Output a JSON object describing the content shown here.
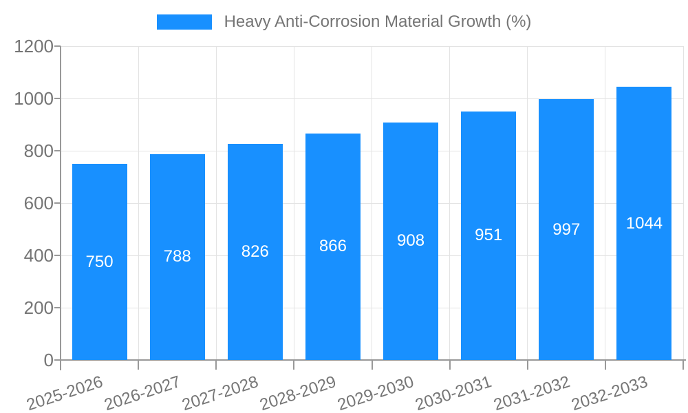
{
  "colors": {
    "bar": "#1890FF",
    "axis": "#999999",
    "grid": "#E3E3E3",
    "text": "#757575",
    "bar_label": "#FFFFFF",
    "background": "#FFFFFF"
  },
  "legend": {
    "label": "Heavy Anti-Corrosion Material Growth (%)"
  },
  "chart_data": {
    "type": "bar",
    "title": "Heavy Anti-Corrosion Material Growth (%)",
    "categories": [
      "2025-2026",
      "2026-2027",
      "2027-2028",
      "2028-2029",
      "2029-2030",
      "2030-2031",
      "2031-2032",
      "2032-2033"
    ],
    "values": [
      750,
      788,
      826,
      866,
      908,
      951,
      997,
      1044
    ],
    "series": [
      {
        "name": "Heavy Anti-Corrosion Material Growth (%)",
        "values": [
          750,
          788,
          826,
          866,
          908,
          951,
          997,
          1044
        ]
      }
    ],
    "xlabel": "",
    "ylabel": "",
    "ylim": [
      0,
      1200
    ],
    "yticks": [
      0,
      200,
      400,
      600,
      800,
      1000,
      1200
    ],
    "grid": true,
    "legend_position": "top-center",
    "bar_value_labels": "inside-middle",
    "x_tick_rotation_deg": -18
  }
}
